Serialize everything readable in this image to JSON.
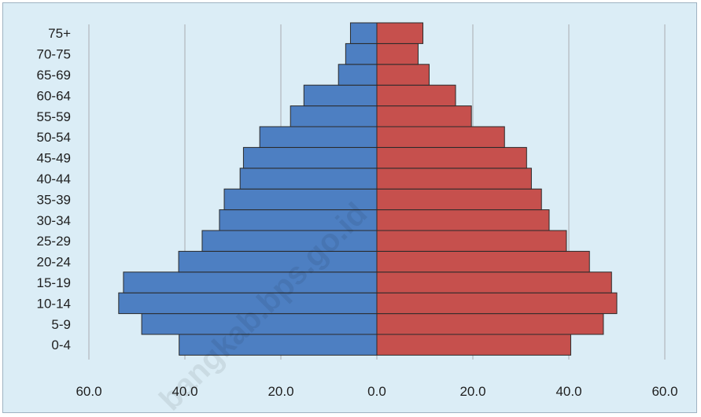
{
  "colors": {
    "left": "#4d7fc2",
    "right": "#c6504d",
    "edge": "#2a2a2a",
    "grid": "#a8aab0",
    "background": "#dbedf6"
  },
  "watermark": "bangkab.bps.go.id",
  "chart_data": {
    "type": "bar",
    "orientation": "horizontal",
    "subtype": "population-pyramid",
    "categories": [
      "0-4",
      "5-9",
      "10-14",
      "15-19",
      "20-24",
      "25-29",
      "30-34",
      "35-39",
      "40-44",
      "45-49",
      "50-54",
      "55-59",
      "60-64",
      "65-69",
      "70-75",
      "75+"
    ],
    "series": [
      {
        "side": "left",
        "values": [
          41.2,
          49.0,
          53.8,
          52.8,
          41.3,
          36.4,
          32.8,
          31.8,
          28.5,
          27.8,
          24.4,
          18.0,
          15.2,
          8.0,
          6.5,
          5.5
        ]
      },
      {
        "side": "right",
        "values": [
          40.4,
          47.2,
          50.0,
          48.9,
          44.3,
          39.5,
          35.9,
          34.3,
          32.2,
          31.2,
          26.6,
          19.7,
          16.4,
          10.9,
          8.6,
          9.6
        ]
      }
    ],
    "xlim": [
      -60,
      60
    ],
    "x_tick_values": [
      -60,
      -40,
      -20,
      0,
      20,
      40,
      60
    ],
    "x_tick_labels": [
      "60.0",
      "40.0",
      "20.0",
      "0.0",
      "20.0",
      "40.0",
      "60.0"
    ],
    "grid": "vertical",
    "legend": "none"
  }
}
